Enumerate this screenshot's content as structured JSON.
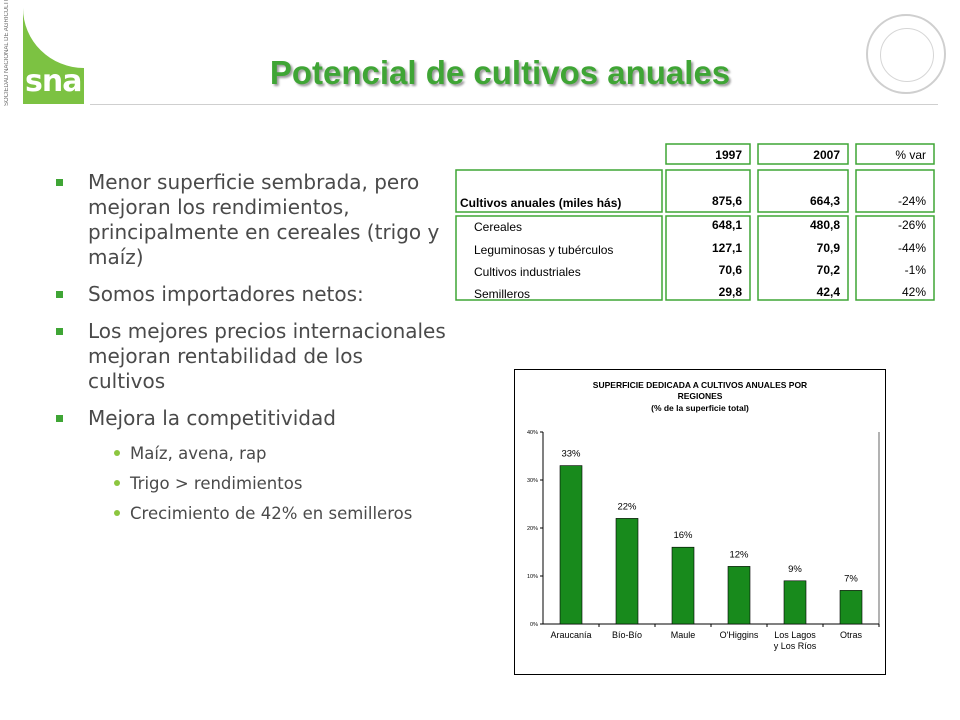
{
  "slide": {
    "title": "Potencial de cultivos anuales",
    "logo_text": "sna",
    "logo_side_text": "SOCIEDAD NACIONAL DE AGRICULTURA"
  },
  "bullets": [
    {
      "level": 1,
      "text": "Menor superficie sembrada, pero mejoran los rendimientos, principalmente en cereales (trigo y maíz)"
    },
    {
      "level": 1,
      "text": "Somos importadores netos:"
    },
    {
      "level": 1,
      "text": "Los mejores precios internacionales mejoran rentabilidad de los cultivos"
    },
    {
      "level": 1,
      "text": "Mejora la competitividad"
    },
    {
      "level": 2,
      "text": "Maíz, avena, rap"
    },
    {
      "level": 2,
      "text": "Trigo > rendimientos"
    },
    {
      "level": 2,
      "text": "Crecimiento de 42% en semilleros"
    }
  ],
  "table": {
    "columns": [
      "1997",
      "2007",
      "% var"
    ],
    "total": {
      "label": "Cultivos anuales (miles hás)",
      "values": [
        "875,6",
        "664,3",
        "-24%"
      ]
    },
    "rows": [
      {
        "label": "Cereales",
        "values": [
          "648,1",
          "480,8",
          "-26%"
        ]
      },
      {
        "label": "Leguminosas y tubérculos",
        "values": [
          "127,1",
          "70,9",
          "-44%"
        ]
      },
      {
        "label": "Cultivos industriales",
        "values": [
          "70,6",
          "70,2",
          "-1%"
        ]
      },
      {
        "label": "Semilleros",
        "values": [
          "29,8",
          "42,4",
          "42%"
        ]
      }
    ]
  },
  "chart_data": {
    "type": "bar",
    "title": "SUPERFICIE DEDICADA A CULTIVOS ANUALES POR REGIONES",
    "subtitle": "(% de la superficie total)",
    "categories": [
      "Araucanía",
      "Bío-Bío",
      "Maule",
      "O'Higgins",
      "Los Lagos y Los Ríos",
      "Otras"
    ],
    "values": [
      33,
      22,
      16,
      12,
      9,
      7
    ],
    "data_labels": [
      "33%",
      "22%",
      "16%",
      "12%",
      "9%",
      "7%"
    ],
    "yticks": [
      "0%",
      "10%",
      "20%",
      "30%",
      "40%"
    ],
    "ylim": [
      0,
      40
    ],
    "bar_color": "#188a1c",
    "grid": false,
    "legend": "none"
  }
}
